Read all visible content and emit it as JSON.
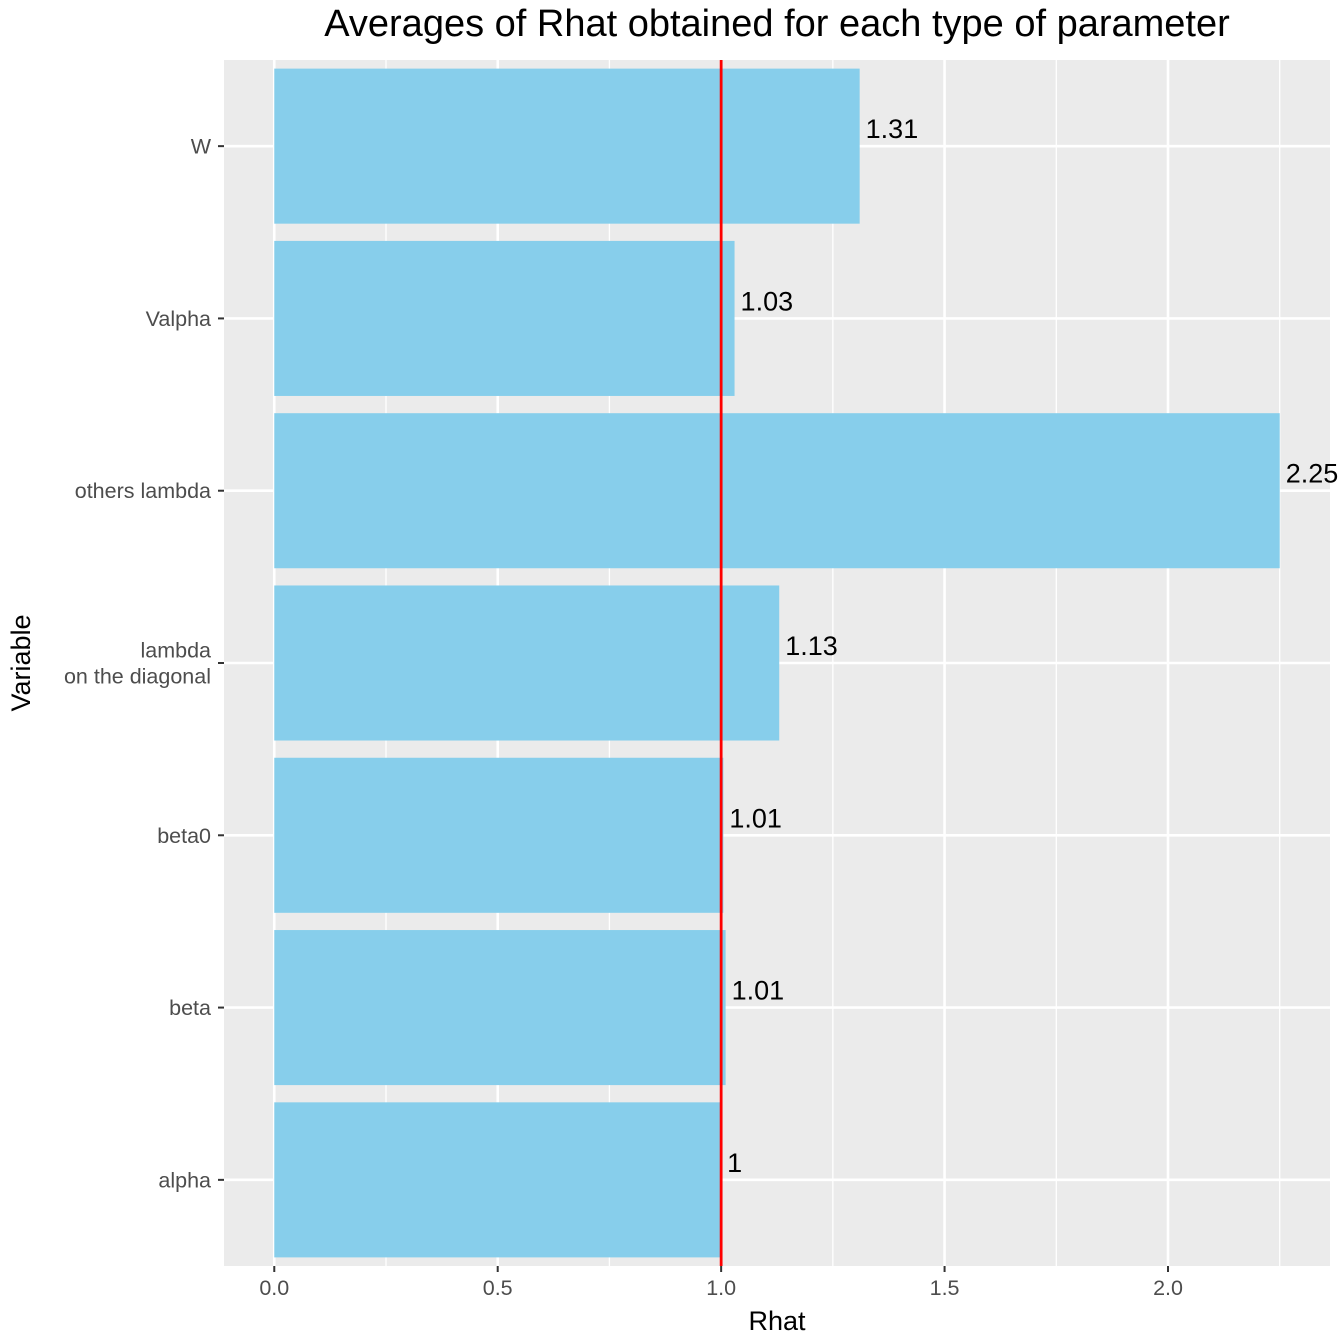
{
  "chart_data": {
    "type": "bar",
    "orientation": "horizontal",
    "title": "Averages of Rhat obtained for each type of parameter",
    "xlabel": "Rhat",
    "ylabel": "Variable",
    "categories": [
      "alpha",
      "beta",
      "beta0",
      "lambda\non the diagonal",
      "others lambda",
      "Valpha",
      "W"
    ],
    "values": [
      1.0,
      1.01,
      1.005,
      1.13,
      2.25,
      1.03,
      1.31
    ],
    "data_labels": [
      "1",
      "1.01",
      "1.01",
      "1.13",
      "2.25",
      "1.03",
      "1.31"
    ],
    "xlim": [
      -0.1125,
      2.3625
    ],
    "x_ticks": [
      0.0,
      0.5,
      1.0,
      1.5,
      2.0
    ],
    "x_tick_labels": [
      "0.0",
      "0.5",
      "1.0",
      "1.5",
      "2.0"
    ],
    "reference_line": {
      "x": 1.0,
      "color": "#ff0000"
    },
    "bar_color": "#87ceeb",
    "panel_background": "#ebebeb",
    "grid": true,
    "legend": "none"
  }
}
